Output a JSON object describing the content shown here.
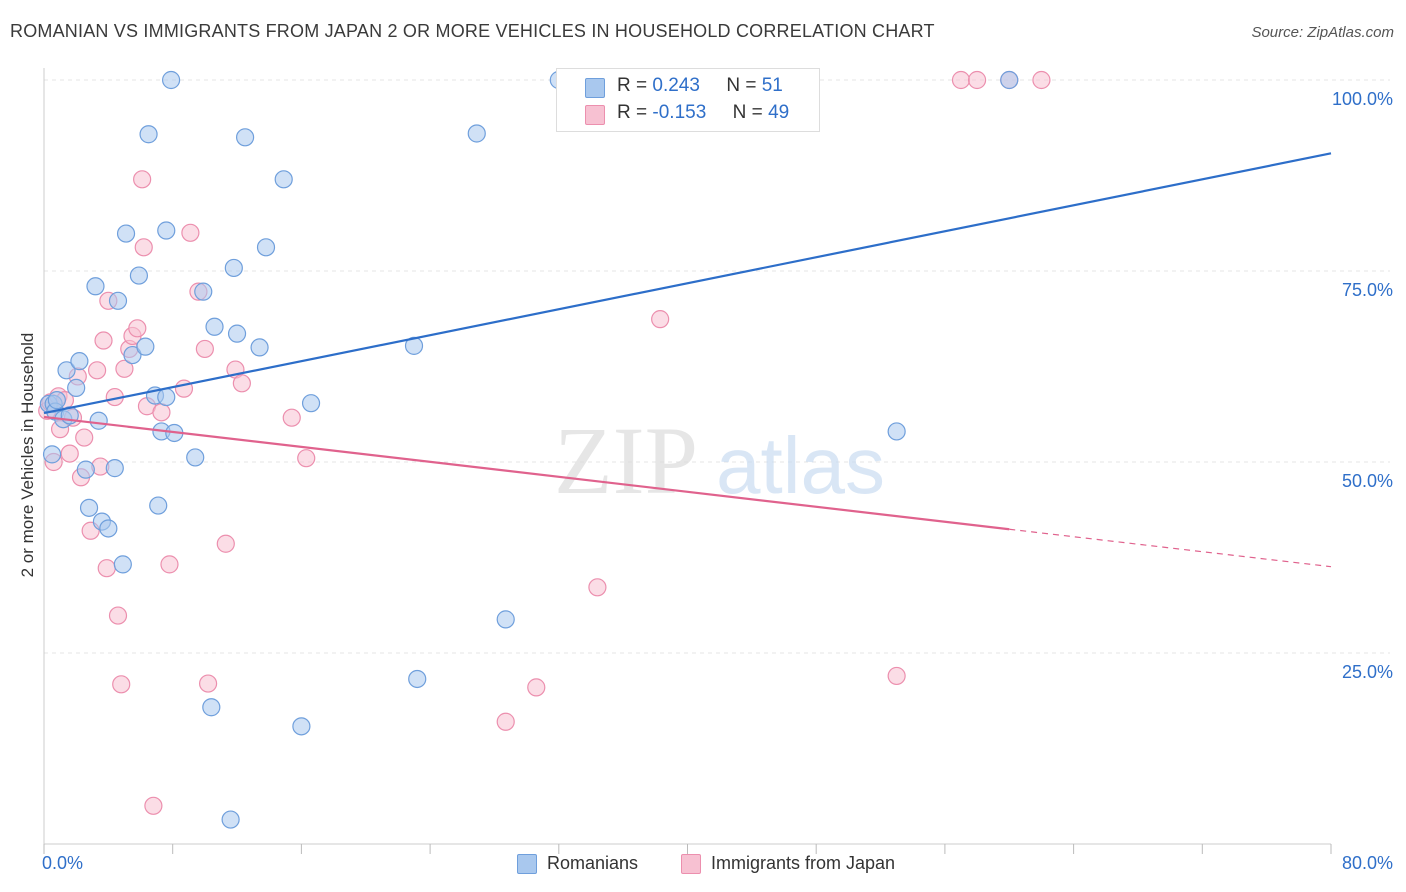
{
  "title": "ROMANIAN VS IMMIGRANTS FROM JAPAN 2 OR MORE VEHICLES IN HOUSEHOLD CORRELATION CHART",
  "source": "Source: ZipAtlas.com",
  "watermark": {
    "zip": "ZIP",
    "atlas": "atlas"
  },
  "colors": {
    "blue_fill": "#a9c8ee",
    "blue_stroke": "#6f9fdc",
    "blue_line": "#2d6ec9",
    "pink_fill": "#f7c1d2",
    "pink_stroke": "#ec8fae",
    "pink_line": "#e0628d",
    "grid": "#e4e4e4",
    "tick_label": "#2f6fc9"
  },
  "legend": {
    "rows": [
      {
        "r_label": "R =",
        "r_value": "0.243",
        "n_label": "N =",
        "n_value": "51"
      },
      {
        "r_label": "R =",
        "r_value": "-0.153",
        "n_label": "N =",
        "n_value": "49"
      }
    ]
  },
  "bottom_legend": {
    "series1": "Romanians",
    "series2": "Immigrants from Japan"
  },
  "chart_data": {
    "type": "scatter",
    "title": "ROMANIAN VS IMMIGRANTS FROM JAPAN 2 OR MORE VEHICLES IN HOUSEHOLD CORRELATION CHART",
    "xlabel": "",
    "ylabel": "2 or more Vehicles in Household",
    "xlim": [
      0,
      80
    ],
    "ylim": [
      0,
      100
    ],
    "x_tick_labels": [
      "0.0%",
      "80.0%"
    ],
    "y_ticks": [
      25,
      50,
      75,
      100
    ],
    "y_tick_labels": [
      "25.0%",
      "50.0%",
      "75.0%",
      "100.0%"
    ],
    "grid": true,
    "legend_position": "top-center",
    "series": [
      {
        "name": "Romanians",
        "r": 0.243,
        "n": 51,
        "trend": {
          "x": [
            0,
            80
          ],
          "y": [
            56.4,
            90.4
          ],
          "dashed_from_x": null
        },
        "points": [
          [
            0.3,
            57.6
          ],
          [
            0.5,
            51.0
          ],
          [
            0.6,
            57.6
          ],
          [
            0.7,
            56.6
          ],
          [
            0.8,
            58.1
          ],
          [
            1.2,
            55.6
          ],
          [
            1.4,
            62.0
          ],
          [
            1.6,
            56.1
          ],
          [
            2.0,
            59.7
          ],
          [
            2.2,
            63.2
          ],
          [
            2.6,
            49.0
          ],
          [
            2.8,
            44.0
          ],
          [
            3.2,
            73.0
          ],
          [
            3.4,
            55.4
          ],
          [
            3.6,
            42.2
          ],
          [
            4.0,
            41.3
          ],
          [
            4.4,
            49.2
          ],
          [
            4.6,
            71.1
          ],
          [
            4.9,
            36.6
          ],
          [
            5.1,
            79.9
          ],
          [
            5.5,
            64.0
          ],
          [
            5.9,
            74.4
          ],
          [
            6.3,
            65.1
          ],
          [
            6.5,
            92.9
          ],
          [
            6.9,
            58.7
          ],
          [
            7.1,
            44.3
          ],
          [
            7.3,
            54.0
          ],
          [
            7.6,
            58.5
          ],
          [
            7.6,
            80.3
          ],
          [
            7.9,
            100.0
          ],
          [
            8.1,
            53.8
          ],
          [
            9.4,
            50.6
          ],
          [
            9.9,
            72.3
          ],
          [
            10.4,
            17.9
          ],
          [
            10.6,
            67.7
          ],
          [
            11.6,
            3.2
          ],
          [
            11.8,
            75.4
          ],
          [
            12.0,
            66.8
          ],
          [
            12.5,
            92.5
          ],
          [
            13.4,
            65.0
          ],
          [
            13.8,
            78.1
          ],
          [
            14.9,
            87.0
          ],
          [
            16.0,
            15.4
          ],
          [
            16.6,
            57.7
          ],
          [
            23.0,
            65.2
          ],
          [
            23.2,
            21.6
          ],
          [
            26.9,
            93.0
          ],
          [
            28.7,
            29.4
          ],
          [
            32.0,
            100.0
          ],
          [
            53.0,
            54.0
          ],
          [
            60.0,
            100.0
          ]
        ]
      },
      {
        "name": "Immigrants from Japan",
        "r": -0.153,
        "n": 49,
        "trend": {
          "x": [
            0,
            80
          ],
          "y": [
            55.9,
            36.3
          ],
          "dashed_from_x": 60
        },
        "points": [
          [
            0.2,
            56.7
          ],
          [
            0.4,
            57.8
          ],
          [
            0.6,
            50.0
          ],
          [
            0.9,
            58.6
          ],
          [
            1.0,
            54.3
          ],
          [
            1.3,
            58.1
          ],
          [
            1.6,
            51.1
          ],
          [
            1.8,
            55.8
          ],
          [
            2.1,
            61.2
          ],
          [
            2.3,
            48.0
          ],
          [
            2.5,
            53.2
          ],
          [
            2.9,
            41.0
          ],
          [
            3.3,
            62.0
          ],
          [
            3.5,
            49.4
          ],
          [
            3.7,
            65.9
          ],
          [
            3.9,
            36.1
          ],
          [
            4.0,
            71.1
          ],
          [
            4.4,
            58.5
          ],
          [
            4.6,
            29.9
          ],
          [
            4.8,
            20.9
          ],
          [
            5.0,
            62.2
          ],
          [
            5.3,
            64.8
          ],
          [
            5.5,
            66.5
          ],
          [
            5.8,
            67.5
          ],
          [
            6.1,
            87.0
          ],
          [
            6.2,
            78.1
          ],
          [
            6.4,
            57.3
          ],
          [
            6.8,
            5.0
          ],
          [
            7.3,
            56.5
          ],
          [
            7.8,
            36.6
          ],
          [
            8.7,
            59.6
          ],
          [
            9.1,
            80.0
          ],
          [
            9.6,
            72.3
          ],
          [
            10.0,
            64.8
          ],
          [
            10.2,
            21.0
          ],
          [
            11.3,
            39.3
          ],
          [
            11.9,
            62.1
          ],
          [
            12.3,
            60.3
          ],
          [
            15.4,
            55.8
          ],
          [
            16.3,
            50.5
          ],
          [
            28.7,
            16.0
          ],
          [
            30.6,
            20.5
          ],
          [
            34.4,
            33.6
          ],
          [
            38.3,
            68.7
          ],
          [
            53.0,
            22.0
          ],
          [
            57.0,
            100.0
          ],
          [
            60.0,
            100.0
          ],
          [
            62.0,
            100.0
          ],
          [
            58.0,
            100.0
          ]
        ]
      }
    ]
  }
}
